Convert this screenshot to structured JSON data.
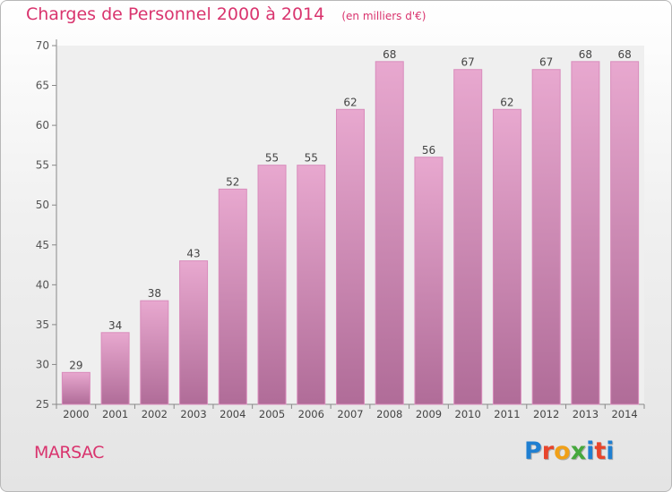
{
  "header": {
    "title": "Charges de Personnel 2000 à 2014",
    "subtitle": "(en milliers d'€)"
  },
  "footer": {
    "place": "MARSAC",
    "logo_text": "Proxiti"
  },
  "colors": {
    "accent": "#d9346e",
    "bar_top": "#e8a8cf",
    "bar_bottom": "#b06c98",
    "bar_stroke": "#d98cbc",
    "logo_letters": [
      "#1f7fd1",
      "#e8452b",
      "#f0a018",
      "#46a83d",
      "#1f7fd1",
      "#e8452b",
      "#1f7fd1"
    ]
  },
  "chart_data": {
    "type": "bar",
    "categories": [
      "2000",
      "2001",
      "2002",
      "2003",
      "2004",
      "2005",
      "2006",
      "2007",
      "2008",
      "2009",
      "2010",
      "2011",
      "2012",
      "2013",
      "2014"
    ],
    "values": [
      29,
      34,
      38,
      43,
      52,
      55,
      55,
      62,
      68,
      56,
      67,
      62,
      67,
      68,
      68
    ],
    "data_labels": [
      "29",
      "34",
      "38",
      "43",
      "52",
      "55",
      "55",
      "62",
      "68",
      "56",
      "67",
      "62",
      "67",
      "68",
      "68"
    ],
    "y_ticks": [
      25,
      30,
      35,
      40,
      45,
      50,
      55,
      60,
      65,
      70
    ],
    "ylim": [
      25,
      70
    ],
    "grid": false,
    "legend": "none"
  }
}
